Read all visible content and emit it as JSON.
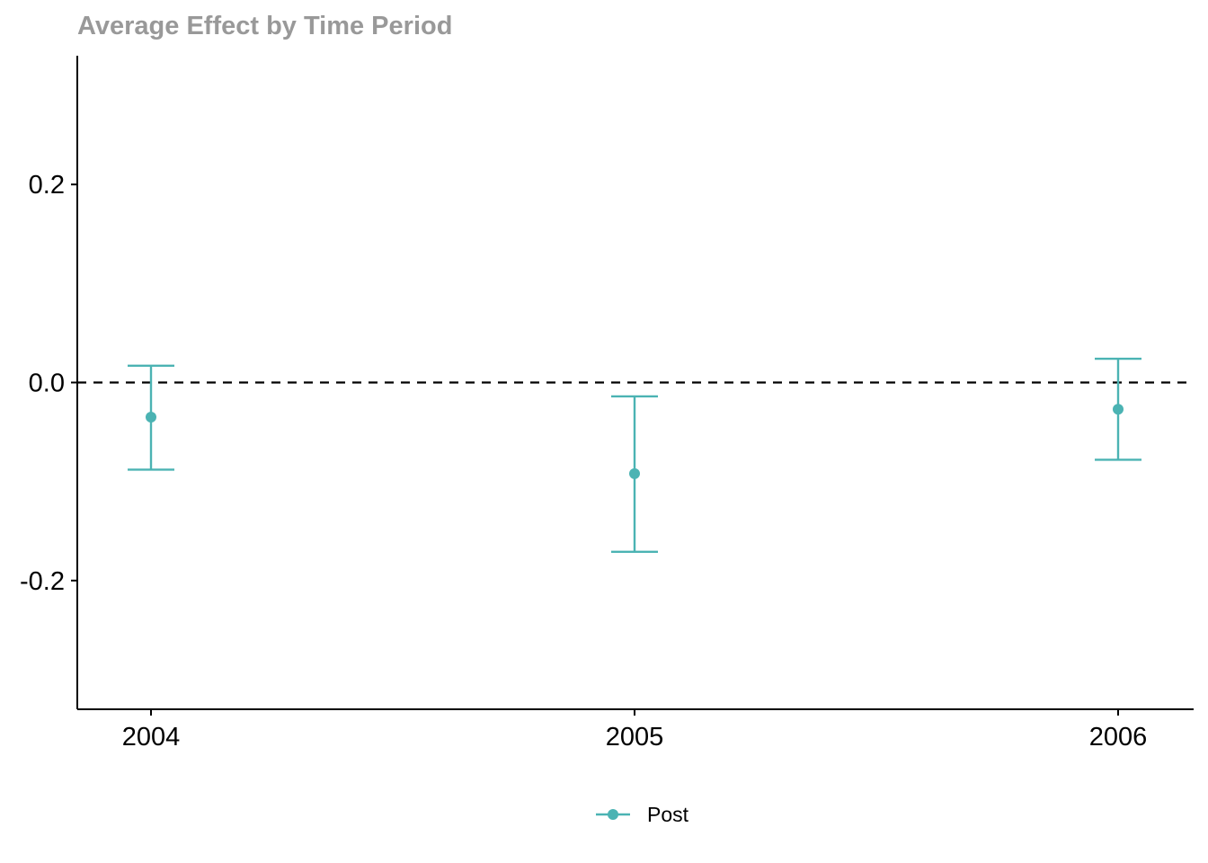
{
  "chart_data": {
    "type": "scatter",
    "title": "Average Effect by Time Period",
    "subtitle": "",
    "xlabel": "",
    "ylabel": "",
    "categories": [
      "2004",
      "2005",
      "2006"
    ],
    "series": [
      {
        "name": "Post",
        "color": "#4bb3b3",
        "points": [
          {
            "x": "2004",
            "y": -0.035,
            "ci_low": -0.088,
            "ci_high": 0.017
          },
          {
            "x": "2005",
            "y": -0.092,
            "ci_low": -0.171,
            "ci_high": -0.014
          },
          {
            "x": "2006",
            "y": -0.027,
            "ci_low": -0.078,
            "ci_high": 0.024
          }
        ]
      }
    ],
    "ylim": [
      -0.33,
      0.33
    ],
    "yticks": [
      {
        "value": 0.2,
        "label": "0.2"
      },
      {
        "value": 0.0,
        "label": "0.0"
      },
      {
        "value": -0.2,
        "label": "-0.2"
      }
    ],
    "reference_line": {
      "y": 0.0,
      "style": "dashed",
      "color": "#000000"
    },
    "title_color": "#999999",
    "axis_color": "#000000",
    "grid": false,
    "legend_position": "bottom"
  }
}
